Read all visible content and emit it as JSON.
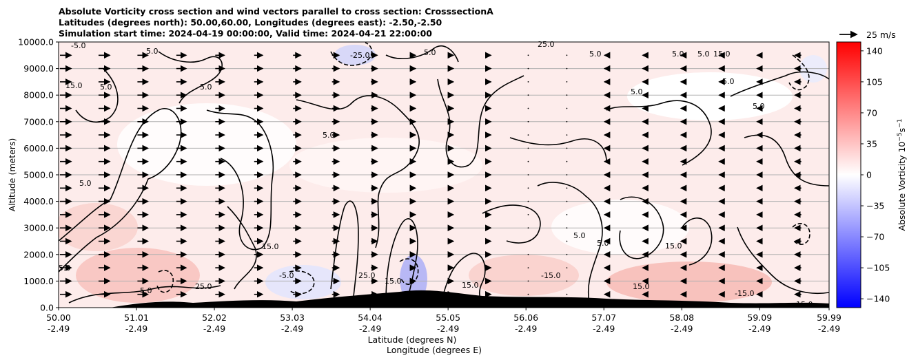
{
  "chart_data": {
    "type": "heatmap",
    "title_lines": [
      "Absolute Vorticity cross section and wind vectors parallel to cross section: CrosssectionA",
      "Latitudes (degrees north): 50.00,60.00, Longitudes (degrees east): -2.50,-2.50",
      "Simulation start time: 2024-04-19 00:00:00, Valid time: 2024-04-21 22:00:00"
    ],
    "xlabel_line1": "Latitude (degrees N)",
    "xlabel_line2": "Longitude (degrees E)",
    "ylabel": "Altitude (meters)",
    "x_ticks": [
      {
        "lat": "50.00",
        "lon": "-2.49",
        "value": 50.0
      },
      {
        "lat": "51.01",
        "lon": "-2.49",
        "value": 51.01
      },
      {
        "lat": "52.02",
        "lon": "-2.49",
        "value": 52.02
      },
      {
        "lat": "53.03",
        "lon": "-2.49",
        "value": 53.03
      },
      {
        "lat": "54.04",
        "lon": "-2.49",
        "value": 54.04
      },
      {
        "lat": "55.05",
        "lon": "-2.49",
        "value": 55.05
      },
      {
        "lat": "56.06",
        "lon": "-2.49",
        "value": 56.06
      },
      {
        "lat": "57.07",
        "lon": "-2.49",
        "value": 57.07
      },
      {
        "lat": "58.08",
        "lon": "-2.49",
        "value": 58.08
      },
      {
        "lat": "59.09",
        "lon": "-2.49",
        "value": 59.09
      },
      {
        "lat": "59.99",
        "lon": "-2.49",
        "value": 59.99
      }
    ],
    "xlim": [
      50.0,
      59.99
    ],
    "y_ticks": [
      "0.0",
      "1000.0",
      "2000.0",
      "3000.0",
      "4000.0",
      "5000.0",
      "6000.0",
      "7000.0",
      "8000.0",
      "9000.0",
      "10000.0"
    ],
    "ylim": [
      0,
      10000
    ],
    "grid_y": true,
    "colorbar": {
      "label": "Absolute Vorticity 10",
      "label_exponent": "−5",
      "label_unit": "s",
      "label_unit_exponent": "−1",
      "range": [
        -150,
        150
      ],
      "ticks": [
        "140",
        "105",
        "70",
        "35",
        "0",
        "−35",
        "−70",
        "−105",
        "−140"
      ],
      "tick_values": [
        140,
        105,
        70,
        35,
        0,
        -35,
        -70,
        -105,
        -140
      ],
      "colormap": "bwr",
      "low_color": "#0000ff",
      "mid_color": "#ffffff",
      "high_color": "#ff0000"
    },
    "quiver_key": {
      "label": "25 m/s",
      "speed": 25
    },
    "contour_levels": [
      -25,
      -15,
      -5,
      5,
      15,
      25
    ],
    "contour_labels": [
      "-5.0",
      "5.0",
      "15.0",
      "25.0",
      "-15.0",
      "-25.0"
    ],
    "wind_columns": [
      {
        "lat": 50.0,
        "u": 16
      },
      {
        "lat": 50.5,
        "u": 16
      },
      {
        "lat": 51.0,
        "u": 15
      },
      {
        "lat": 51.5,
        "u": 14
      },
      {
        "lat": 52.0,
        "u": 13
      },
      {
        "lat": 52.5,
        "u": 12
      },
      {
        "lat": 53.0,
        "u": 11
      },
      {
        "lat": 53.5,
        "u": 10
      },
      {
        "lat": 54.0,
        "u": 9
      },
      {
        "lat": 54.5,
        "u": 8
      },
      {
        "lat": 55.0,
        "u": 6
      },
      {
        "lat": 55.5,
        "u": 3
      },
      {
        "lat": 56.0,
        "u": 1
      },
      {
        "lat": 56.5,
        "u": -1
      },
      {
        "lat": 57.0,
        "u": -2
      },
      {
        "lat": 57.5,
        "u": -3
      },
      {
        "lat": 58.0,
        "u": -4
      },
      {
        "lat": 58.5,
        "u": -5
      },
      {
        "lat": 59.0,
        "u": -7
      },
      {
        "lat": 59.5,
        "u": -9
      }
    ],
    "wind_levels_m": [
      500,
      1000,
      1500,
      2000,
      2500,
      3000,
      3500,
      4000,
      4500,
      5000,
      5500,
      6000,
      6500,
      7000,
      7500,
      8000,
      8500,
      9000,
      9500
    ]
  }
}
